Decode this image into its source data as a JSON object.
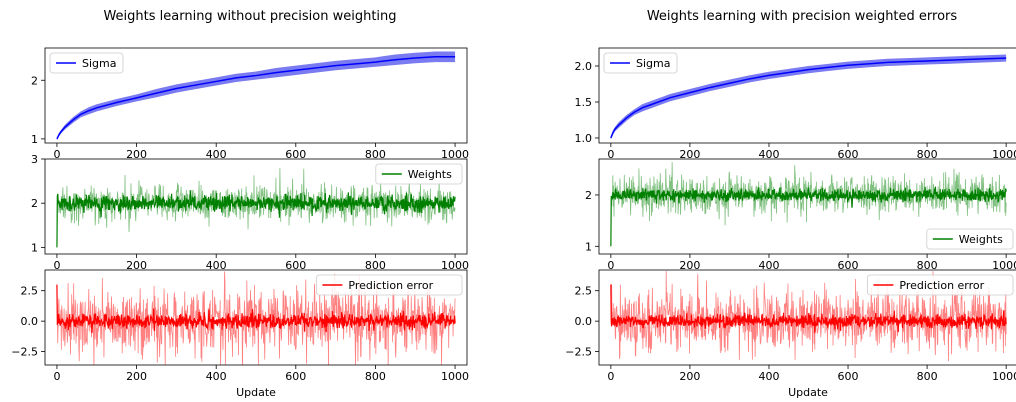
{
  "figure": {
    "left_title": "Weights learning without precision weighting",
    "right_title": "Weights learning with precision weighted errors",
    "xlabel": "Update"
  },
  "chart_data": [
    {
      "type": "area",
      "panel": "left-sigma",
      "legend": "Sigma",
      "legend_loc": "upper left",
      "color": "#0000ff",
      "band_color": "#6b6bf0",
      "xlim": [
        -30,
        1030
      ],
      "ylim": [
        0.93,
        2.55
      ],
      "xticks": [
        0,
        200,
        400,
        600,
        800,
        1000
      ],
      "yticks": [
        1,
        2
      ],
      "ytick_labels": [
        "1",
        "2"
      ],
      "x": [
        0,
        5,
        10,
        20,
        40,
        60,
        80,
        100,
        150,
        200,
        250,
        300,
        350,
        400,
        450,
        500,
        550,
        600,
        650,
        700,
        750,
        800,
        850,
        900,
        950,
        1000
      ],
      "mean": [
        1.0,
        1.07,
        1.12,
        1.2,
        1.32,
        1.42,
        1.48,
        1.53,
        1.62,
        1.7,
        1.78,
        1.86,
        1.92,
        1.98,
        2.04,
        2.08,
        2.13,
        2.17,
        2.21,
        2.25,
        2.28,
        2.31,
        2.35,
        2.38,
        2.4,
        2.4
      ],
      "band": [
        0.02,
        0.03,
        0.03,
        0.04,
        0.05,
        0.05,
        0.06,
        0.06,
        0.06,
        0.06,
        0.07,
        0.07,
        0.07,
        0.07,
        0.07,
        0.07,
        0.08,
        0.08,
        0.08,
        0.08,
        0.08,
        0.08,
        0.09,
        0.09,
        0.09,
        0.09
      ]
    },
    {
      "type": "line",
      "panel": "left-weights",
      "legend": "Weights",
      "legend_loc": "upper right",
      "color": "#008000",
      "band_color": "#80c080",
      "xlim": [
        -30,
        1030
      ],
      "ylim": [
        0.85,
        3.0
      ],
      "xticks": [
        0,
        200,
        400,
        600,
        800,
        1000
      ],
      "yticks": [
        1,
        2,
        3
      ],
      "ytick_labels": [
        "1",
        "2",
        "3"
      ],
      "x": [
        0,
        1000
      ],
      "start_value": 1.0,
      "mean_level": 2.0,
      "line_spread": 0.18,
      "band_spread": 0.42,
      "n_points": 1001
    },
    {
      "type": "line",
      "panel": "left-error",
      "legend": "Prediction error",
      "legend_loc": "upper right",
      "color": "#ff0000",
      "band_color": "#ff8080",
      "xlim": [
        -30,
        1030
      ],
      "ylim": [
        -3.6,
        4.2
      ],
      "xticks": [
        0,
        200,
        400,
        600,
        800,
        1000
      ],
      "xtick_labels": [
        "0",
        "200",
        "400",
        "600",
        "800",
        "1000"
      ],
      "yticks": [
        -2.5,
        0,
        2.5
      ],
      "ytick_labels": [
        "−2.5",
        "0.0",
        "2.5"
      ],
      "x": [
        0,
        1000
      ],
      "start_value": 3.0,
      "mean_level": 0.0,
      "line_spread": 0.6,
      "band_spread": 2.8,
      "n_points": 1001
    },
    {
      "type": "area",
      "panel": "right-sigma",
      "legend": "Sigma",
      "legend_loc": "upper left",
      "color": "#0000ff",
      "band_color": "#6b6bf0",
      "xlim": [
        -30,
        1030
      ],
      "ylim": [
        0.93,
        2.25
      ],
      "xticks": [
        0,
        200,
        400,
        600,
        800,
        1000
      ],
      "yticks": [
        1.0,
        1.5,
        2.0
      ],
      "ytick_labels": [
        "1.0",
        "1.5",
        "2.0"
      ],
      "x": [
        0,
        5,
        10,
        20,
        40,
        60,
        80,
        100,
        150,
        200,
        250,
        300,
        350,
        400,
        450,
        500,
        550,
        600,
        650,
        700,
        750,
        800,
        850,
        900,
        950,
        1000
      ],
      "mean": [
        1.0,
        1.07,
        1.12,
        1.18,
        1.28,
        1.36,
        1.42,
        1.46,
        1.56,
        1.63,
        1.7,
        1.76,
        1.82,
        1.87,
        1.91,
        1.95,
        1.98,
        2.01,
        2.03,
        2.05,
        2.06,
        2.07,
        2.08,
        2.09,
        2.1,
        2.11
      ],
      "band": [
        0.02,
        0.03,
        0.03,
        0.04,
        0.04,
        0.04,
        0.05,
        0.05,
        0.05,
        0.05,
        0.05,
        0.05,
        0.05,
        0.05,
        0.05,
        0.05,
        0.05,
        0.05,
        0.05,
        0.05,
        0.05,
        0.05,
        0.05,
        0.05,
        0.05,
        0.05
      ]
    },
    {
      "type": "line",
      "panel": "right-weights",
      "legend": "Weights",
      "legend_loc": "lower right",
      "color": "#008000",
      "band_color": "#80c080",
      "xlim": [
        -30,
        1030
      ],
      "ylim": [
        0.85,
        2.7
      ],
      "xticks": [
        0,
        200,
        400,
        600,
        800,
        1000
      ],
      "yticks": [
        1,
        2
      ],
      "ytick_labels": [
        "1",
        "2"
      ],
      "x": [
        0,
        1000
      ],
      "start_value": 1.0,
      "mean_level": 2.0,
      "line_spread": 0.12,
      "band_spread": 0.38,
      "n_points": 1001
    },
    {
      "type": "line",
      "panel": "right-error",
      "legend": "Prediction error",
      "legend_loc": "upper right",
      "color": "#ff0000",
      "band_color": "#ff8080",
      "xlim": [
        -30,
        1030
      ],
      "ylim": [
        -3.6,
        4.2
      ],
      "xticks": [
        0,
        200,
        400,
        600,
        800,
        1000
      ],
      "xtick_labels": [
        "0",
        "200",
        "400",
        "600",
        "800",
        "1000"
      ],
      "yticks": [
        -2.5,
        0,
        2.5
      ],
      "ytick_labels": [
        "−2.5",
        "0.0",
        "2.5"
      ],
      "x": [
        0,
        1000
      ],
      "start_value": 3.0,
      "mean_level": 0.0,
      "line_spread": 0.55,
      "band_spread": 2.6,
      "n_points": 1001
    }
  ]
}
